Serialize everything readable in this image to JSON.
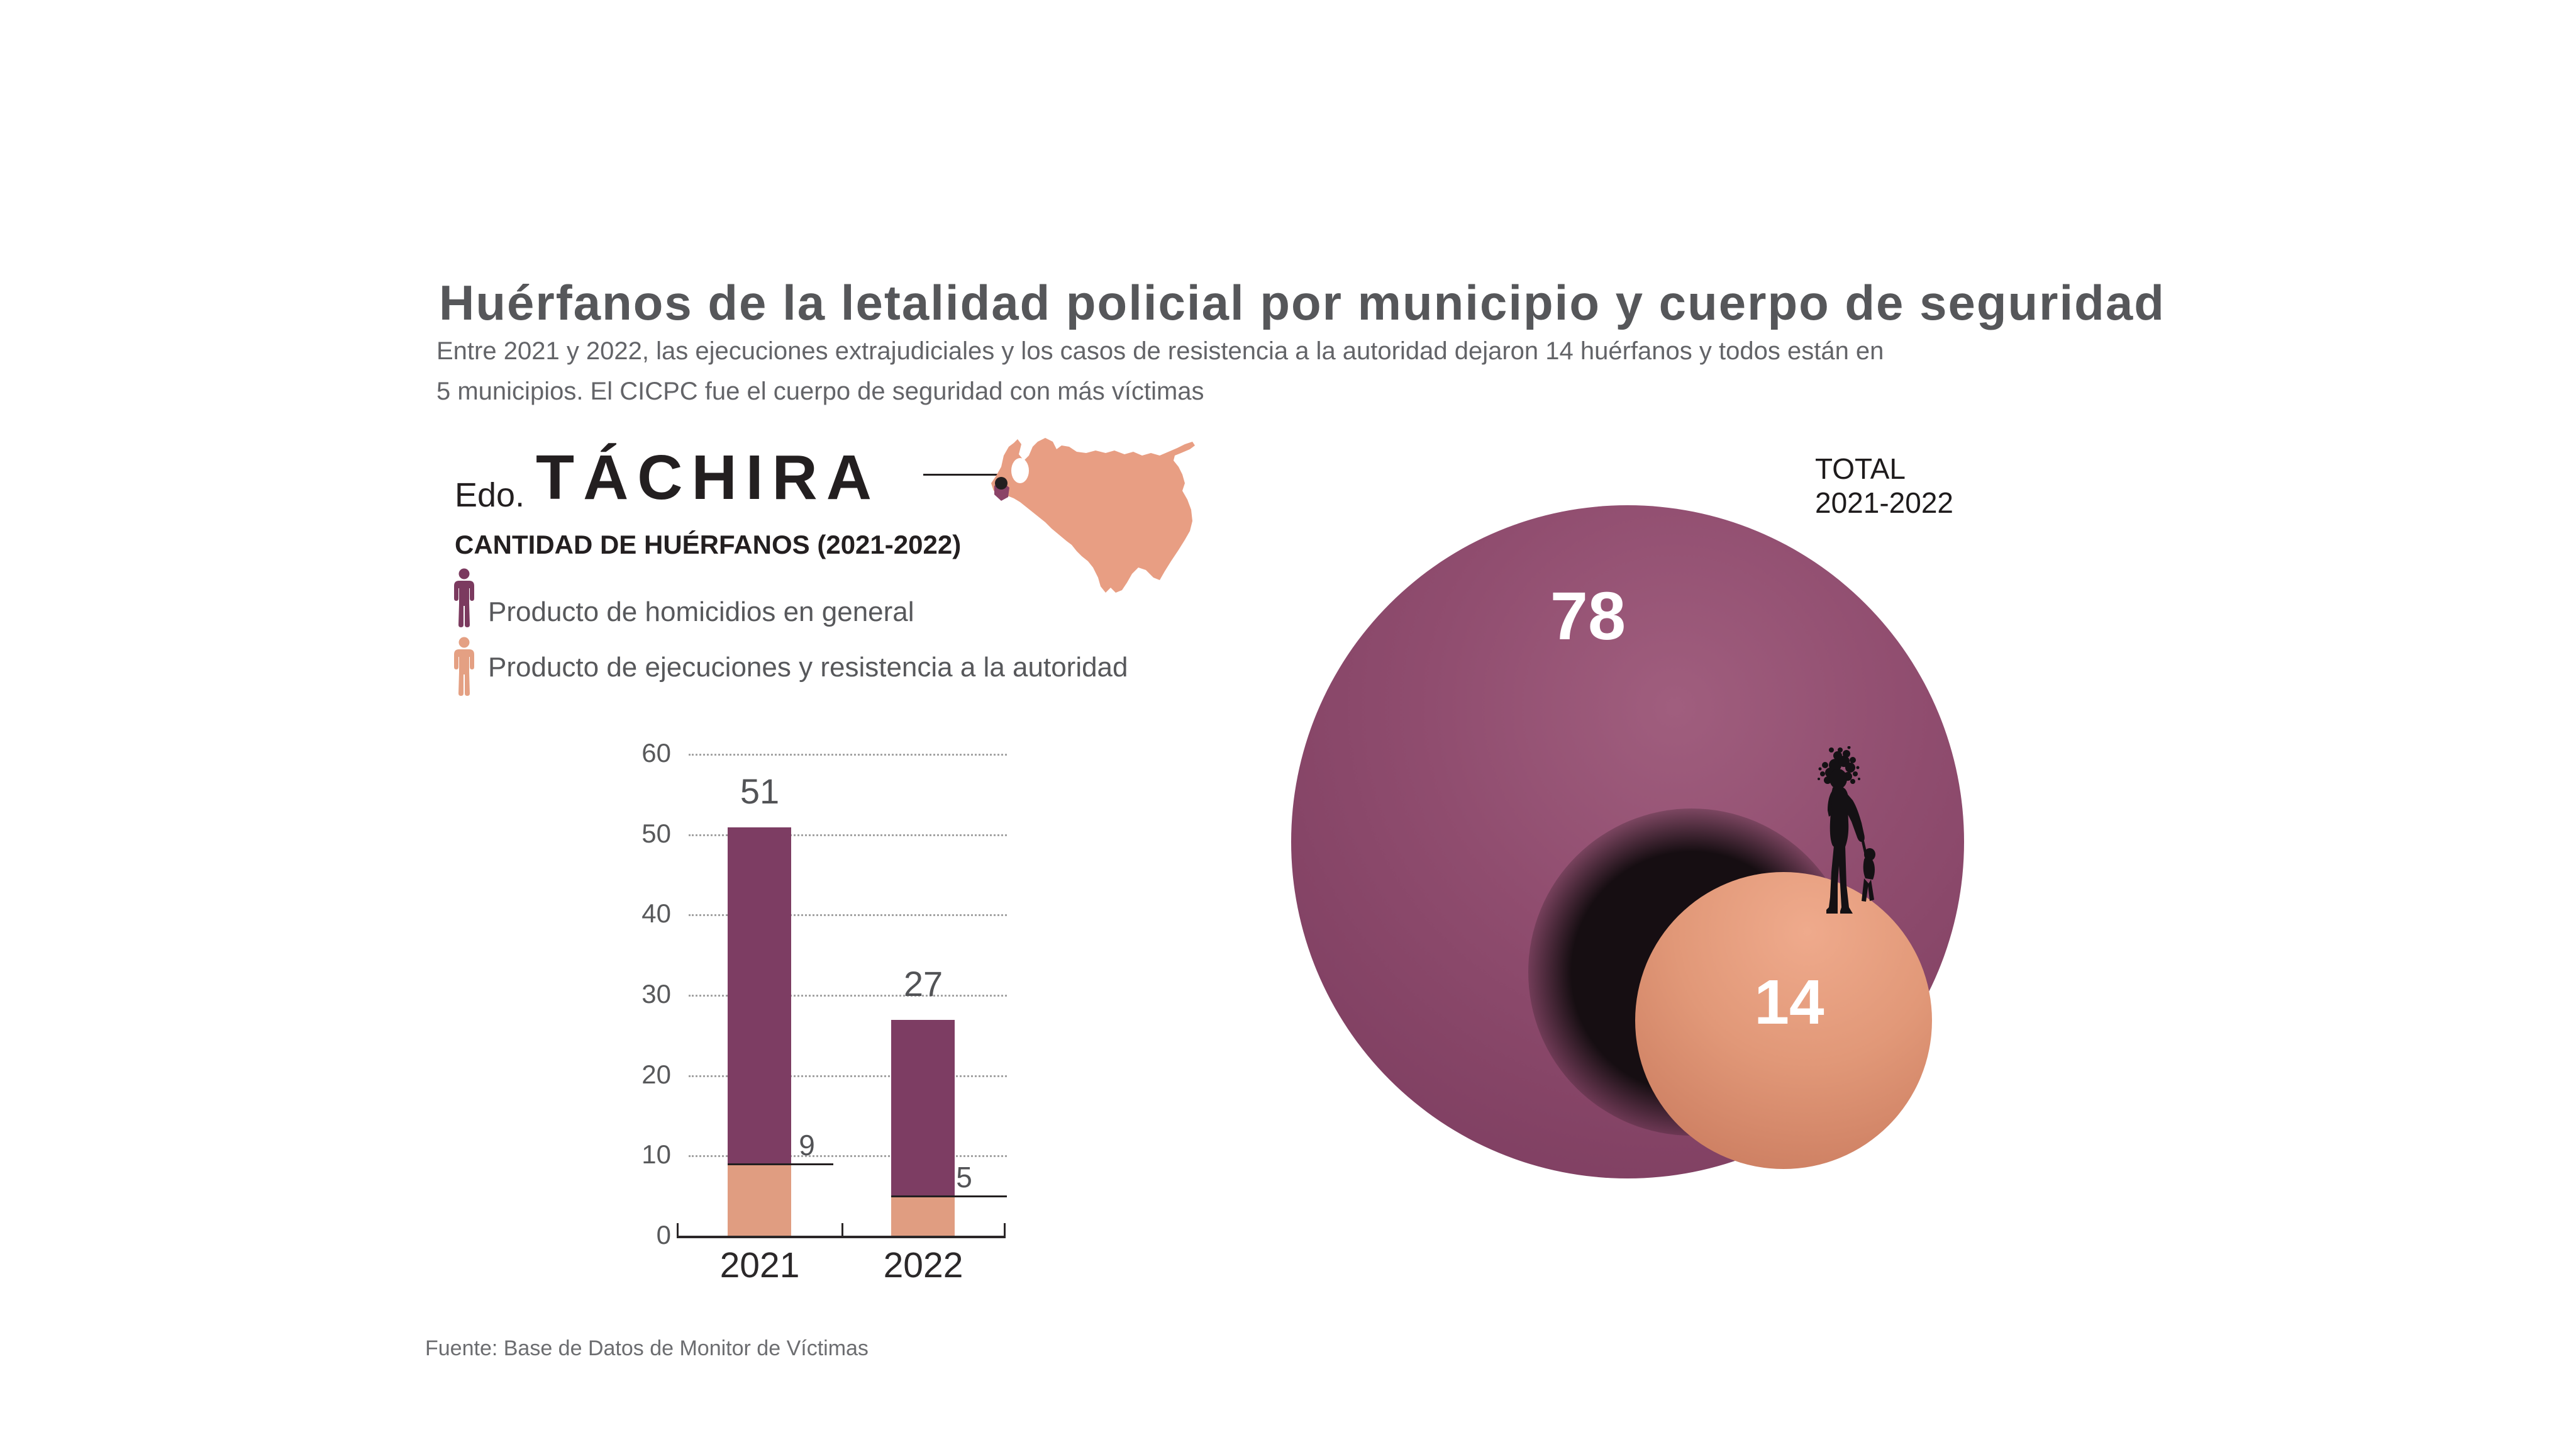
{
  "page": {
    "background": "#ffffff"
  },
  "header": {
    "title": "Huérfanos de la letalidad policial por municipio y cuerpo de seguridad",
    "subtitle_line1": "Entre 2021 y 2022, las ejecuciones extrajudiciales y los casos de resistencia a la autoridad dejaron 14 huérfanos y todos están en",
    "subtitle_line2": "5 municipios. El CICPC fue el cuerpo de seguridad con más víctimas"
  },
  "region": {
    "prefix": "Edo.",
    "name": "TÁCHIRA",
    "subheading": "CANTIDAD DE HUÉRFANOS (2021-2022)",
    "map_icon": "venezuela-map",
    "marker_icon": "map-marker-dot",
    "map_color": "#e89e83",
    "tachira_color": "#8b4367",
    "marker_color": "#231f20"
  },
  "legend": {
    "items": [
      {
        "label": "Producto de homicidios en general",
        "icon": "person-icon",
        "color": "#7b3a5f"
      },
      {
        "label": "Producto de ejecuciones y resistencia a la autoridad",
        "icon": "person-icon",
        "color": "#e4a083"
      }
    ]
  },
  "chart_data": [
    {
      "type": "bar",
      "stacked": true,
      "title": "CANTIDAD DE HUÉRFANOS (2021-2022)",
      "categories": [
        "2021",
        "2022"
      ],
      "series": [
        {
          "name": "Producto de homicidios en general",
          "color": "#7d3d63",
          "values": [
            42,
            22
          ]
        },
        {
          "name": "Producto de ejecuciones y resistencia a la autoridad",
          "color": "#e09d81",
          "values": [
            9,
            5
          ]
        }
      ],
      "stack_totals": [
        51,
        27
      ],
      "total_labels": [
        "51",
        "27"
      ],
      "segment_labels": [
        "9",
        "5"
      ],
      "xlabel": "",
      "ylabel": "",
      "ylim": [
        0,
        60
      ],
      "yticks": [
        0,
        10,
        20,
        30,
        40,
        50,
        60
      ],
      "grid": "dotted horizontal",
      "legend_position": "top-left"
    },
    {
      "type": "bubble",
      "title": "TOTAL 2021-2022",
      "bubbles": [
        {
          "name": "Producto de homicidios en general",
          "value": 78,
          "label": "78",
          "color": "#8d4a6c"
        },
        {
          "name": "Producto de ejecuciones y resistencia a la autoridad",
          "value": 14,
          "label": "14",
          "color": "#db9277"
        }
      ]
    }
  ],
  "bubble_section": {
    "total_line1": "TOTAL",
    "total_line2": "2021-2022",
    "big_value": "78",
    "small_value": "14",
    "silhouette_icon": "adult-and-child-silhouette",
    "shadow_color": "#160e12"
  },
  "source": "Fuente: Base de Datos de Monitor de Víctimas",
  "colors": {
    "title_text": "#56575a",
    "subtitle_text": "#636468",
    "black_text": "#231f20",
    "tick_text": "#58595b",
    "axis": "#2b2728",
    "gridline": "#a3a3a3",
    "bar_purple": "#7d3d63",
    "bar_salmon": "#e09d81",
    "sphere_purple": "#8d4a6c",
    "ball_salmon": "#db9277",
    "value_white": "#ffffff"
  }
}
